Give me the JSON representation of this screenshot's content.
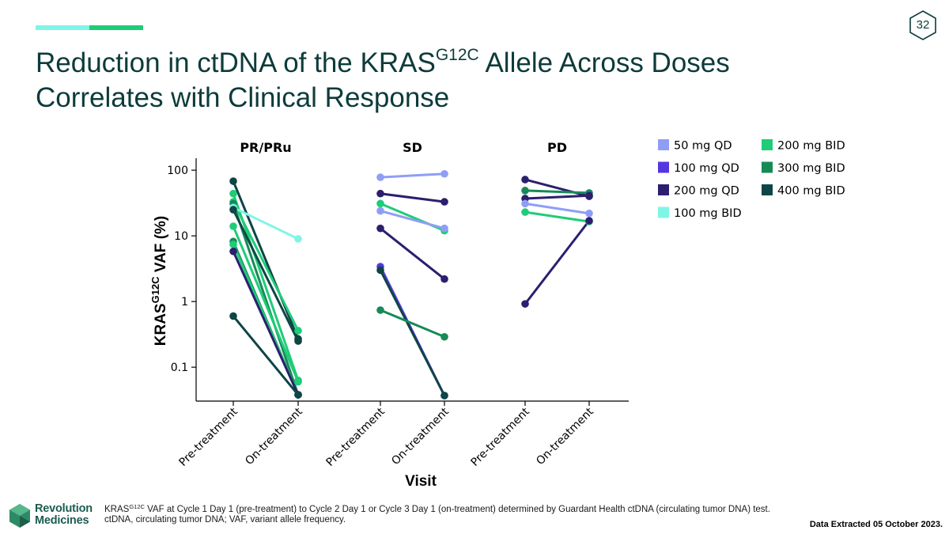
{
  "header": {
    "page_number": "32",
    "title_line1_pre": "Reduction in ctDNA of the KRAS",
    "title_sup": "G12C",
    "title_line1_post": " Allele Across Doses",
    "title_line2": "Correlates with Clinical Response",
    "accent_colors": [
      "#7ff5e6",
      "#1fcc78"
    ]
  },
  "chart_data": {
    "type": "line",
    "yscale": "log",
    "ylim": [
      0.035,
      140
    ],
    "ylabel_pre": "KRAS",
    "ylabel_sup": "G12C",
    "ylabel_post": " VAF (%)",
    "xlabel": "Visit",
    "yticks": [
      {
        "value": 100,
        "label": "100"
      },
      {
        "value": 10,
        "label": "10"
      },
      {
        "value": 1,
        "label": "1"
      },
      {
        "value": 0.1,
        "label": "0.1"
      }
    ],
    "groups": [
      {
        "name": "PR/PRu",
        "categories": [
          "Pre-treatment",
          "On-treatment"
        ]
      },
      {
        "name": "SD",
        "categories": [
          "Pre-treatment",
          "On-treatment"
        ]
      },
      {
        "name": "PD",
        "categories": [
          "Pre-treatment",
          "On-treatment"
        ]
      }
    ],
    "legend": [
      {
        "label": "50 mg QD",
        "color": "#8f9ef5"
      },
      {
        "label": "200 mg BID",
        "color": "#1fcc78"
      },
      {
        "label": "100 mg QD",
        "color": "#5436e0"
      },
      {
        "label": "300 mg BID",
        "color": "#178a58"
      },
      {
        "label": "200 mg QD",
        "color": "#2b1f6e"
      },
      {
        "label": "400 mg BID",
        "color": "#0e4545"
      },
      {
        "label": "100 mg BID",
        "color": "#7ff5e6"
      }
    ],
    "series": [
      {
        "group": "PR/PRu",
        "dose": "400 mg BID",
        "values": [
          68,
          0.27
        ]
      },
      {
        "group": "PR/PRu",
        "dose": "200 mg BID",
        "values": [
          44,
          0.063
        ]
      },
      {
        "group": "PR/PRu",
        "dose": "200 mg BID",
        "values": [
          33,
          0.36
        ]
      },
      {
        "group": "PR/PRu",
        "dose": "300 mg BID",
        "values": [
          31,
          0.038
        ]
      },
      {
        "group": "PR/PRu",
        "dose": "100 mg BID",
        "values": [
          27,
          9
        ]
      },
      {
        "group": "PR/PRu",
        "dose": "400 mg BID",
        "values": [
          25,
          0.25
        ]
      },
      {
        "group": "PR/PRu",
        "dose": "200 mg BID",
        "values": [
          14,
          0.06
        ]
      },
      {
        "group": "PR/PRu",
        "dose": "300 mg BID",
        "values": [
          8.2,
          0.038
        ]
      },
      {
        "group": "PR/PRu",
        "dose": "200 mg BID",
        "values": [
          7.4,
          0.038
        ]
      },
      {
        "group": "PR/PRu",
        "dose": "200 mg QD",
        "values": [
          5.8,
          0.038
        ]
      },
      {
        "group": "PR/PRu",
        "dose": "400 mg BID",
        "values": [
          0.6,
          0.038
        ]
      },
      {
        "group": "SD",
        "dose": "50 mg QD",
        "values": [
          78,
          88
        ]
      },
      {
        "group": "SD",
        "dose": "200 mg QD",
        "values": [
          44,
          33
        ]
      },
      {
        "group": "SD",
        "dose": "200 mg BID",
        "values": [
          31,
          12
        ]
      },
      {
        "group": "SD",
        "dose": "50 mg QD",
        "values": [
          24,
          13
        ]
      },
      {
        "group": "SD",
        "dose": "200 mg QD",
        "values": [
          13,
          2.2
        ]
      },
      {
        "group": "SD",
        "dose": "100 mg QD",
        "values": [
          3.4,
          0.037
        ]
      },
      {
        "group": "SD",
        "dose": "400 mg BID",
        "values": [
          3,
          0.037
        ]
      },
      {
        "group": "SD",
        "dose": "300 mg BID",
        "values": [
          0.74,
          0.29
        ]
      },
      {
        "group": "PD",
        "dose": "200 mg QD",
        "values": [
          72,
          40
        ]
      },
      {
        "group": "PD",
        "dose": "300 mg BID",
        "values": [
          49,
          45
        ]
      },
      {
        "group": "PD",
        "dose": "200 mg QD",
        "values": [
          37,
          41
        ]
      },
      {
        "group": "PD",
        "dose": "50 mg QD",
        "values": [
          31,
          22
        ]
      },
      {
        "group": "PD",
        "dose": "200 mg BID",
        "values": [
          23,
          16.5
        ]
      },
      {
        "group": "PD",
        "dose": "200 mg QD",
        "values": [
          0.92,
          17
        ]
      }
    ]
  },
  "footer": {
    "logo_line1": "Revolution",
    "logo_line2": "Medicines",
    "footnote_line1_pre": "KRAS",
    "footnote_line1_sup": "G12C",
    "footnote_line1_post": " VAF at Cycle 1 Day 1 (pre-treatment) to Cycle 2 Day 1 or Cycle 3 Day 1 (on-treatment) determined by Guardant Health ctDNA (circulating tumor DNA) test.",
    "footnote_line2": "ctDNA, circulating tumor DNA; VAF, variant allele frequency.",
    "data_extracted": "Data Extracted 05 October 2023."
  }
}
